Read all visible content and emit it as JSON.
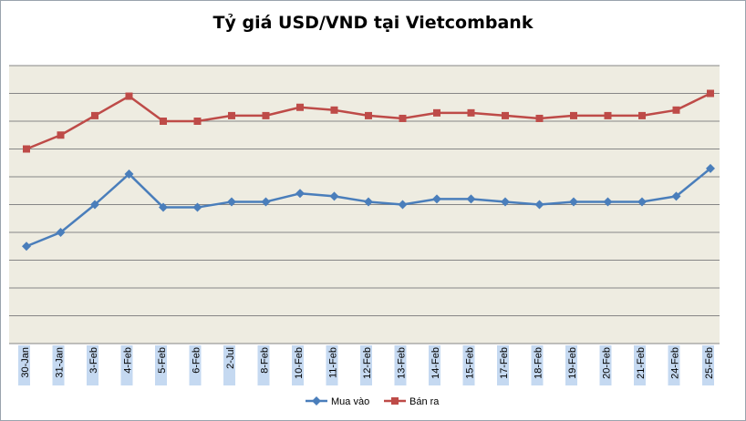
{
  "chart_data": {
    "type": "line",
    "title": "Tỷ giá USD/VND tại Vietcombank",
    "xlabel": "",
    "ylabel": "",
    "categories": [
      "30-Jan",
      "31-Jan",
      "3-Feb",
      "4-Feb",
      "5-Feb",
      "6-Feb",
      "2-Jul",
      "8-Feb",
      "10-Feb",
      "11-Feb",
      "12-Feb",
      "13-Feb",
      "14-Feb",
      "15-Feb",
      "17-Feb",
      "18-Feb",
      "19-Feb",
      "20-Feb",
      "21-Feb",
      "24-Feb",
      "25-Feb"
    ],
    "ylim": [
      0,
      10
    ],
    "grid": true,
    "legend": "bottom",
    "series": [
      {
        "name": "Mua vào",
        "color": "#4a7ebb",
        "marker": "diamond",
        "values": [
          3.5,
          4.0,
          5.0,
          6.1,
          4.9,
          4.9,
          5.1,
          5.1,
          5.4,
          5.3,
          5.1,
          5.0,
          5.2,
          5.2,
          5.1,
          5.0,
          5.1,
          5.1,
          5.1,
          5.3,
          6.3
        ]
      },
      {
        "name": "Bán ra",
        "color": "#be4b48",
        "marker": "square",
        "values": [
          7.0,
          7.5,
          8.2,
          8.9,
          8.0,
          8.0,
          8.2,
          8.2,
          8.5,
          8.4,
          8.2,
          8.1,
          8.3,
          8.3,
          8.2,
          8.1,
          8.2,
          8.2,
          8.2,
          8.4,
          9.0
        ]
      }
    ],
    "colors": {
      "plot_background": "#eeece1",
      "gridline": "#868686"
    }
  }
}
